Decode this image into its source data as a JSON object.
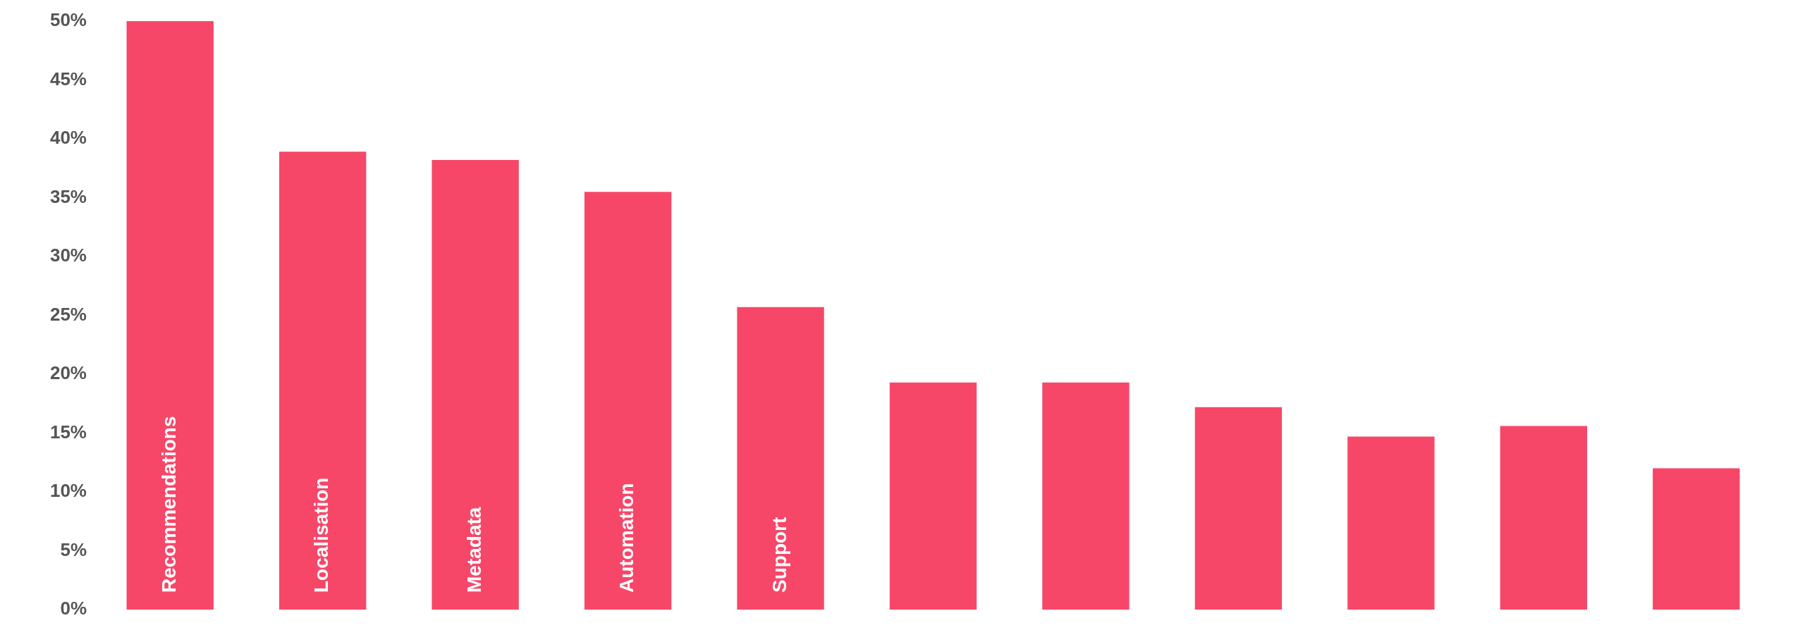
{
  "chart_data": {
    "type": "bar",
    "categories": [
      "Recommendations",
      "Localisation",
      "Metadata",
      "Automation",
      "Support",
      null,
      null,
      null,
      null,
      null,
      null
    ],
    "values": [
      50,
      38.9,
      38.2,
      35.5,
      25.7,
      19.3,
      19.3,
      17.2,
      14.7,
      15.6,
      12.0
    ],
    "color": "#f64769",
    "ylim": [
      0,
      50
    ],
    "yticks": [
      {
        "value": 0,
        "label": "0%"
      },
      {
        "value": 5,
        "label": "5%"
      },
      {
        "value": 10,
        "label": "10%"
      },
      {
        "value": 15,
        "label": "15%"
      },
      {
        "value": 20,
        "label": "20%"
      },
      {
        "value": 25,
        "label": "25%"
      },
      {
        "value": 30,
        "label": "30%"
      },
      {
        "value": 35,
        "label": "35%"
      },
      {
        "value": 40,
        "label": "40%"
      },
      {
        "value": 45,
        "label": "45%"
      },
      {
        "value": 50,
        "label": "50%"
      }
    ],
    "grid": false,
    "legend": false,
    "tick_labels": "y"
  }
}
